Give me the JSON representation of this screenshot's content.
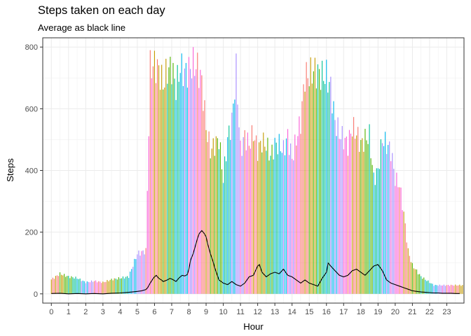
{
  "chart_data": {
    "type": "bar",
    "title": "Steps taken on each day",
    "subtitle": "Average as black line",
    "xlabel": "Hour",
    "ylabel": "Steps",
    "xlim": [
      -0.5,
      24.0
    ],
    "ylim": [
      -30,
      830
    ],
    "x_ticks": [
      0,
      1,
      2,
      3,
      4,
      5,
      6,
      7,
      8,
      9,
      10,
      11,
      12,
      13,
      14,
      15,
      16,
      17,
      18,
      19,
      20,
      21,
      22,
      23
    ],
    "x_tick_labels": [
      "0",
      "1",
      "2",
      "3",
      "4",
      "5",
      "6",
      "7",
      "8",
      "9",
      "10",
      "11",
      "12",
      "13",
      "14",
      "15",
      "16",
      "17",
      "18",
      "19",
      "20",
      "21",
      "22",
      "23"
    ],
    "y_ticks": [
      0,
      200,
      400,
      600,
      800
    ],
    "y_tick_labels": [
      "0",
      "200",
      "400",
      "600",
      "800"
    ],
    "grid": true,
    "legend": "none",
    "interval_minutes": 5,
    "bars": {
      "hours": [
        0,
        0.5,
        1,
        1.5,
        2,
        2.5,
        3,
        3.5,
        4,
        4.5,
        5,
        5.5,
        5.75,
        6,
        6.25,
        6.5,
        6.75,
        7,
        7.25,
        7.5,
        7.75,
        8,
        8.25,
        8.5,
        8.75,
        9,
        9.25,
        9.5,
        9.75,
        10,
        10.25,
        10.5,
        10.75,
        11,
        11.25,
        11.5,
        11.75,
        12,
        12.25,
        12.5,
        12.75,
        13,
        13.25,
        13.5,
        13.75,
        14,
        14.25,
        14.5,
        14.75,
        15,
        15.25,
        15.5,
        15.75,
        16,
        16.25,
        16.5,
        16.75,
        17,
        17.25,
        17.5,
        17.75,
        18,
        18.25,
        18.5,
        18.75,
        19,
        19.25,
        19.5,
        19.75,
        20,
        20.25,
        20.5,
        20.75,
        21,
        21.25,
        21.5,
        21.75,
        22,
        22.25,
        22.5,
        22.75,
        23,
        23.25,
        23.5,
        23.75
      ],
      "max_steps": [
        50,
        70,
        60,
        55,
        40,
        45,
        40,
        50,
        55,
        60,
        140,
        150,
        790,
        800,
        780,
        730,
        780,
        790,
        720,
        790,
        770,
        780,
        800,
        790,
        740,
        580,
        500,
        520,
        540,
        400,
        540,
        600,
        780,
        500,
        550,
        520,
        560,
        500,
        530,
        520,
        480,
        520,
        520,
        500,
        550,
        470,
        540,
        600,
        760,
        760,
        780,
        770,
        760,
        760,
        720,
        600,
        560,
        540,
        520,
        580,
        560,
        520,
        540,
        550,
        400,
        430,
        540,
        520,
        500,
        400,
        380,
        280,
        150,
        100,
        80,
        60,
        50,
        40,
        30,
        30,
        30,
        30,
        30,
        30,
        30
      ],
      "palette": [
        "#F8766D",
        "#C49A00",
        "#53B400",
        "#00C094",
        "#00B6EB",
        "#A58AFF",
        "#FB61D7"
      ]
    },
    "series": [
      {
        "type": "line",
        "x": [
          0,
          0.5,
          1,
          1.5,
          2,
          2.5,
          3,
          3.5,
          4,
          4.5,
          5,
          5.25,
          5.5,
          5.6,
          5.75,
          5.9,
          6,
          6.1,
          6.25,
          6.4,
          6.5,
          6.6,
          6.75,
          6.9,
          7,
          7.1,
          7.25,
          7.4,
          7.5,
          7.6,
          7.75,
          7.9,
          8,
          8.1,
          8.25,
          8.4,
          8.5,
          8.6,
          8.75,
          8.9,
          9,
          9.1,
          9.25,
          9.4,
          9.5,
          9.75,
          10,
          10.25,
          10.5,
          10.75,
          11,
          11.25,
          11.5,
          11.75,
          12,
          12.1,
          12.25,
          12.5,
          12.75,
          13,
          13.25,
          13.5,
          13.75,
          14,
          14.25,
          14.5,
          14.75,
          15,
          15.25,
          15.5,
          15.75,
          16,
          16.1,
          16.25,
          16.5,
          16.75,
          17,
          17.25,
          17.5,
          17.75,
          18,
          18.25,
          18.5,
          18.75,
          19,
          19.25,
          19.5,
          19.75,
          20,
          20.25,
          20.5,
          20.75,
          21,
          21.25,
          21.5,
          21.75,
          22,
          22.25,
          22.5,
          22.75,
          23,
          23.25,
          23.5,
          23.75
        ],
        "y": [
          1,
          2,
          0,
          1,
          0,
          1,
          0,
          2,
          3,
          5,
          8,
          10,
          14,
          20,
          35,
          48,
          55,
          60,
          50,
          45,
          40,
          42,
          45,
          50,
          48,
          45,
          40,
          50,
          55,
          60,
          58,
          62,
          80,
          110,
          130,
          160,
          180,
          195,
          205,
          195,
          185,
          160,
          130,
          105,
          85,
          45,
          35,
          30,
          40,
          30,
          25,
          35,
          55,
          60,
          90,
          95,
          70,
          55,
          65,
          70,
          65,
          80,
          60,
          55,
          45,
          35,
          45,
          35,
          30,
          25,
          50,
          70,
          100,
          90,
          75,
          60,
          55,
          60,
          75,
          80,
          70,
          60,
          75,
          90,
          95,
          75,
          45,
          35,
          30,
          25,
          20,
          15,
          10,
          8,
          6,
          5,
          4,
          3,
          3,
          2,
          2,
          2,
          1,
          1
        ]
      }
    ]
  }
}
